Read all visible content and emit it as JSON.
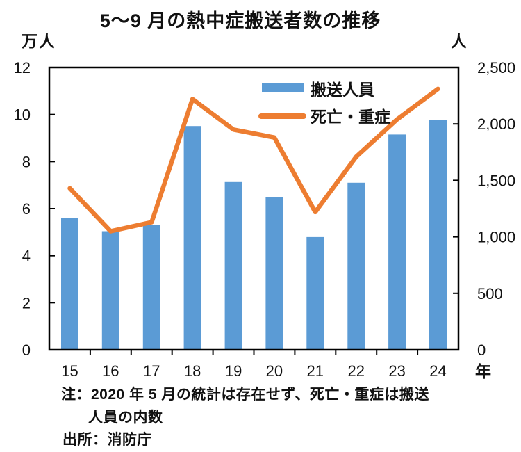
{
  "chart_data": {
    "type": "bar+line",
    "title": "5〜9 月の熱中症搬送者数の推移",
    "categories": [
      "15",
      "16",
      "17",
      "18",
      "19",
      "20",
      "21",
      "22",
      "23",
      "24"
    ],
    "x_axis_label": "年",
    "left_axis": {
      "label": "万人",
      "min": 0,
      "max": 12,
      "tick_step": 2,
      "ticks": [
        "0",
        "2",
        "4",
        "6",
        "8",
        "10",
        "12"
      ]
    },
    "right_axis": {
      "label": "人",
      "min": 0,
      "max": 2500,
      "tick_step": 500,
      "ticks": [
        "0",
        "500",
        "1,000",
        "1,500",
        "2,000",
        "2,500"
      ]
    },
    "series": [
      {
        "name": "搬送人員",
        "type": "bar",
        "axis": "left",
        "color": "#5B9BD5",
        "values": [
          5.59,
          5.04,
          5.3,
          9.51,
          7.13,
          6.49,
          4.79,
          7.1,
          9.15,
          9.76
        ]
      },
      {
        "name": "死亡・重症",
        "type": "line",
        "axis": "right",
        "color": "#ED7D31",
        "values": [
          1430,
          1050,
          1130,
          2220,
          1950,
          1880,
          1220,
          1710,
          2040,
          2310
        ]
      }
    ],
    "legend": [
      "搬送人員",
      "死亡・重症"
    ],
    "legend_position": "top-right-inside",
    "grid": false
  },
  "notes": {
    "line1": "注：2020 年 5 月の統計は存在せず、死亡・重症は搬送",
    "line2": "人員の内数",
    "line3": "出所：消防庁"
  }
}
